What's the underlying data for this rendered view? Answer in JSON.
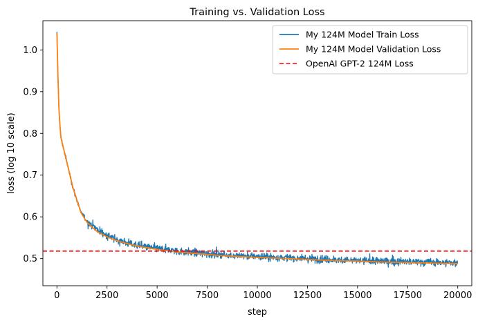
{
  "chart_data": {
    "type": "line",
    "title": "Training vs. Validation Loss",
    "xlabel": "step",
    "ylabel": "loss (log 10 scale)",
    "xlim": [
      -700,
      20700
    ],
    "ylim": [
      0.435,
      1.07
    ],
    "xticks": [
      0,
      2500,
      5000,
      7500,
      10000,
      12500,
      15000,
      17500,
      20000
    ],
    "xtick_labels": [
      "0",
      "2500",
      "5000",
      "7500",
      "10000",
      "12500",
      "15000",
      "17500",
      "20000"
    ],
    "yticks": [
      0.5,
      0.6,
      0.7,
      0.8,
      0.9,
      1.0
    ],
    "ytick_labels": [
      "0.5",
      "0.6",
      "0.7",
      "0.8",
      "0.9",
      "1.0"
    ],
    "grid": false,
    "legend_position": "top-right",
    "series": [
      {
        "name": "My 124M Model Train Loss",
        "color": "#1f77b4",
        "style": "solid",
        "noisy": true,
        "x": [
          0,
          50,
          100,
          150,
          200,
          300,
          400,
          500,
          600,
          700,
          800,
          1000,
          1200,
          1500,
          2000,
          2500,
          3000,
          3500,
          4000,
          5000,
          6000,
          7000,
          8000,
          9000,
          10000,
          11000,
          12000,
          13000,
          14000,
          15000,
          16000,
          17000,
          18000,
          19000,
          20000
        ],
        "y": [
          1.04,
          0.94,
          0.86,
          0.82,
          0.79,
          0.77,
          0.75,
          0.73,
          0.71,
          0.69,
          0.67,
          0.64,
          0.61,
          0.59,
          0.57,
          0.555,
          0.545,
          0.538,
          0.532,
          0.524,
          0.518,
          0.514,
          0.51,
          0.507,
          0.505,
          0.503,
          0.501,
          0.499,
          0.497,
          0.495,
          0.494,
          0.493,
          0.492,
          0.491,
          0.49
        ]
      },
      {
        "name": "My 124M Model Validation Loss",
        "color": "#ff7f0e",
        "style": "solid",
        "noisy": false,
        "x": [
          0,
          50,
          100,
          150,
          200,
          300,
          400,
          500,
          600,
          700,
          800,
          1000,
          1200,
          1500,
          2000,
          2500,
          3000,
          3500,
          4000,
          5000,
          6000,
          7000,
          8000,
          9000,
          10000,
          11000,
          12000,
          13000,
          14000,
          15000,
          16000,
          17000,
          18000,
          19000,
          20000
        ],
        "y": [
          1.04,
          0.94,
          0.86,
          0.82,
          0.79,
          0.77,
          0.75,
          0.73,
          0.71,
          0.69,
          0.67,
          0.64,
          0.61,
          0.587,
          0.565,
          0.552,
          0.543,
          0.536,
          0.53,
          0.522,
          0.516,
          0.512,
          0.508,
          0.505,
          0.503,
          0.501,
          0.499,
          0.497,
          0.495,
          0.494,
          0.492,
          0.491,
          0.49,
          0.489,
          0.488
        ]
      },
      {
        "name": "OpenAI GPT-2 124M Loss",
        "color": "#ff0000",
        "style": "dashed",
        "type": "hline",
        "y": 0.518
      }
    ]
  }
}
